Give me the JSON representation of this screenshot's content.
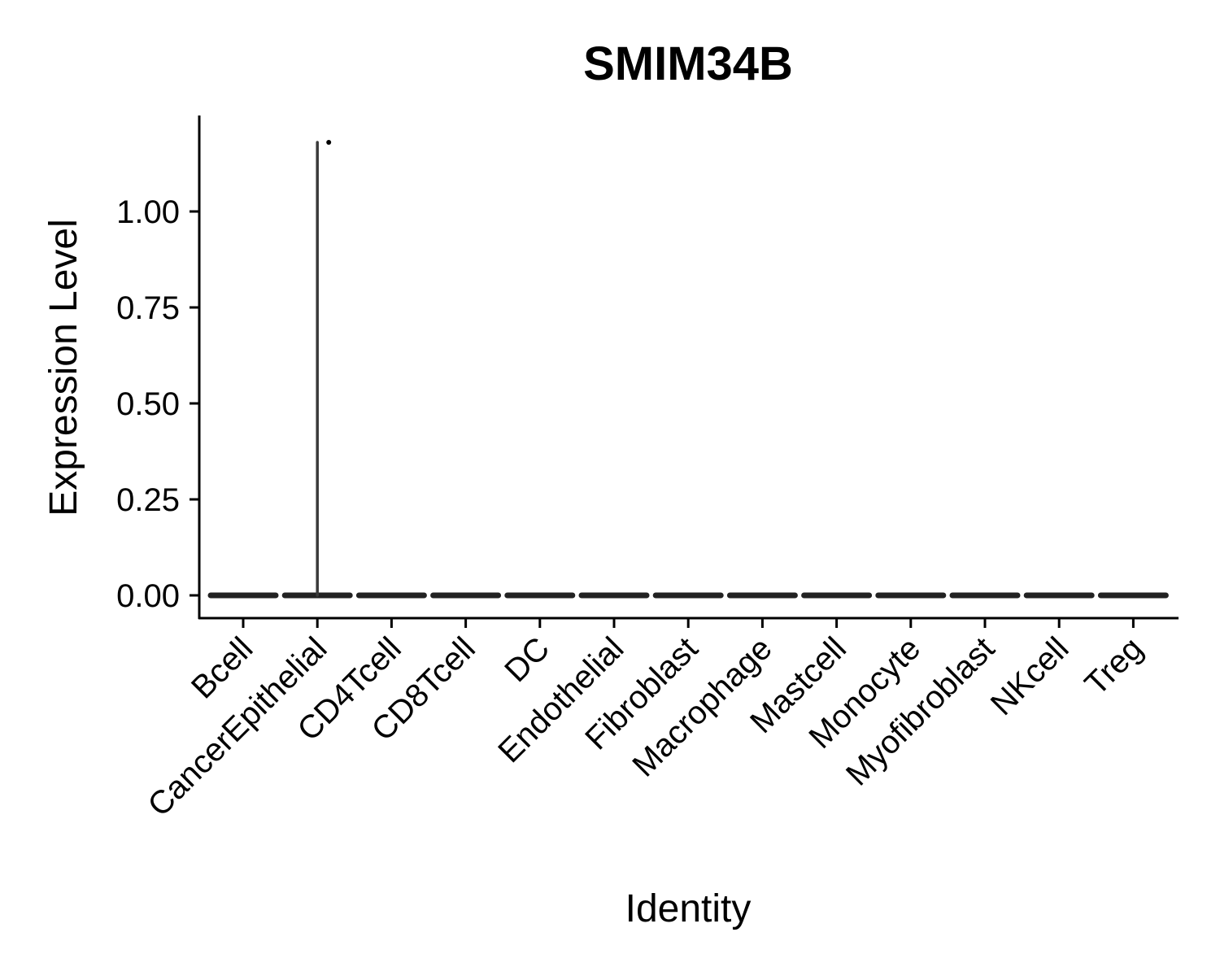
{
  "chart_data": {
    "type": "violin",
    "title": "SMIM34B",
    "xlabel": "Identity",
    "ylabel": "Expression Level",
    "categories": [
      "Bcell",
      "CancerEpithelial",
      "CD4Tcell",
      "CD8Tcell",
      "DC",
      "Endothelial",
      "Fibroblast",
      "Macrophage",
      "Mastcell",
      "Monocyte",
      "Myofibroblast",
      "NKcell",
      "Treg"
    ],
    "yticks": [
      "0.00",
      "0.25",
      "0.50",
      "0.75",
      "1.00"
    ],
    "ylim": [
      -0.06,
      1.24
    ],
    "max_values": [
      0,
      1.18,
      0,
      0,
      0,
      0,
      0,
      0,
      0,
      0,
      0,
      0,
      0
    ],
    "points": [
      {
        "category": "CancerEpithelial",
        "value": 1.18
      }
    ],
    "grid": false,
    "legend": "none",
    "colors": {
      "violin": "#222222",
      "axis": "#000000"
    }
  }
}
